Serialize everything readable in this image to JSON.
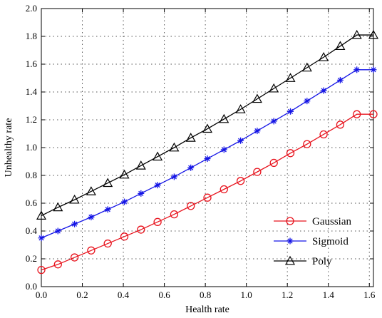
{
  "chart_data": {
    "type": "line",
    "title": "",
    "xlabel": "Health rate",
    "ylabel": "Unhealthy rate",
    "xlim": [
      0.0,
      1.62
    ],
    "ylim": [
      0.0,
      2.0
    ],
    "xticks": [
      "0.0",
      "0.2",
      "0.4",
      "0.6",
      "0.8",
      "1.0",
      "1.2",
      "1.4",
      "1.6"
    ],
    "yticks": [
      "0.0",
      "0.2",
      "0.4",
      "0.6",
      "0.8",
      "1.0",
      "1.2",
      "1.4",
      "1.6",
      "1.8",
      "2.0"
    ],
    "grid": true,
    "legend_position": "bottom-right",
    "x": [
      0.0,
      0.081,
      0.162,
      0.243,
      0.324,
      0.405,
      0.486,
      0.567,
      0.648,
      0.729,
      0.81,
      0.891,
      0.972,
      1.053,
      1.134,
      1.215,
      1.296,
      1.377,
      1.458,
      1.539,
      1.62
    ],
    "series": [
      {
        "name": "Gaussian",
        "color": "#e8141e",
        "marker": "circle",
        "values": [
          0.12,
          0.16,
          0.21,
          0.26,
          0.31,
          0.36,
          0.41,
          0.465,
          0.52,
          0.58,
          0.64,
          0.7,
          0.76,
          0.825,
          0.89,
          0.96,
          1.025,
          1.095,
          1.165,
          1.24,
          1.24
        ]
      },
      {
        "name": "Sigmoid",
        "color": "#1414e6",
        "marker": "star",
        "values": [
          0.35,
          0.4,
          0.45,
          0.5,
          0.555,
          0.61,
          0.67,
          0.73,
          0.79,
          0.855,
          0.92,
          0.985,
          1.05,
          1.12,
          1.19,
          1.26,
          1.335,
          1.41,
          1.485,
          1.56,
          1.56
        ]
      },
      {
        "name": "Poly",
        "color": "#000000",
        "marker": "triangle",
        "values": [
          0.51,
          0.57,
          0.625,
          0.685,
          0.745,
          0.805,
          0.87,
          0.935,
          1.0,
          1.07,
          1.135,
          1.205,
          1.275,
          1.35,
          1.425,
          1.5,
          1.575,
          1.65,
          1.73,
          1.81,
          1.81
        ]
      }
    ]
  }
}
